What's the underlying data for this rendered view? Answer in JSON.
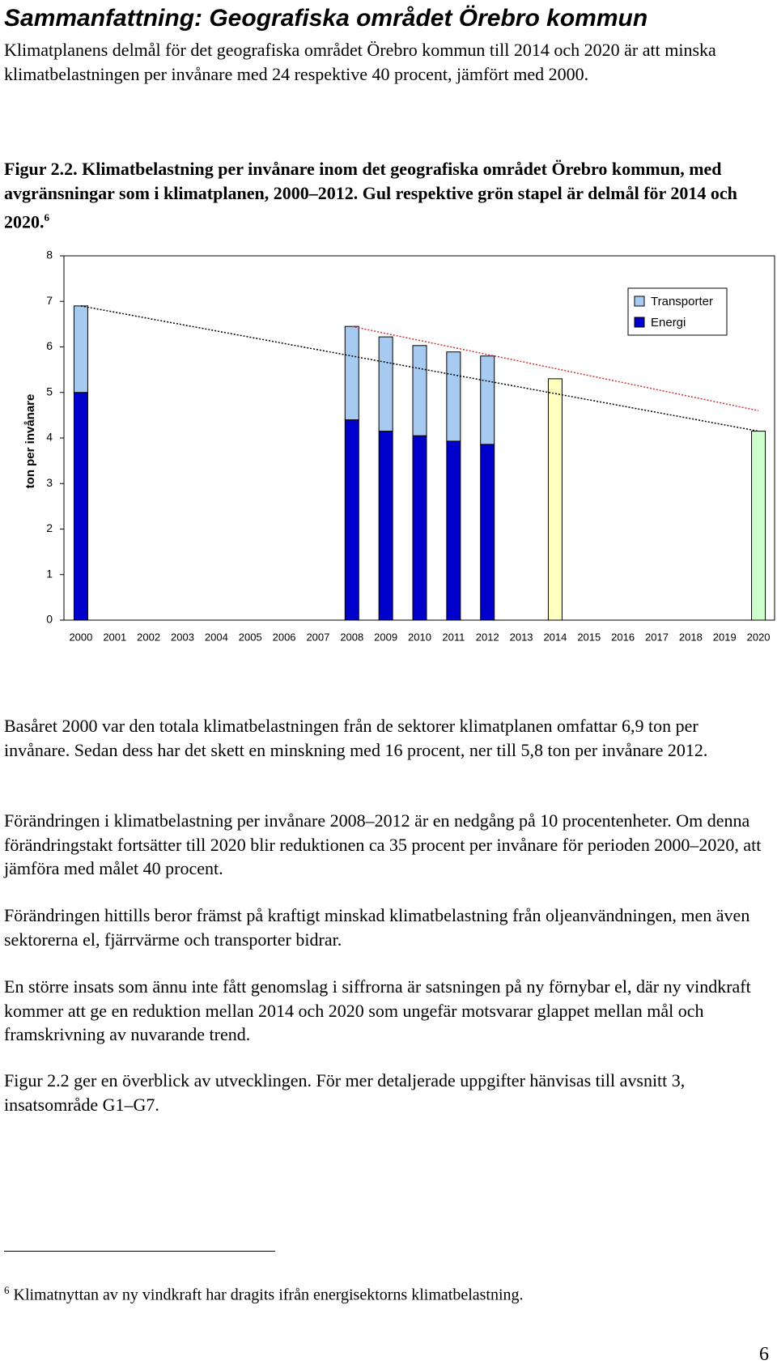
{
  "heading": "Sammanfattning: Geografiska området Örebro kommun",
  "intro": "Klimatplanens delmål för det geografiska området Örebro kommun till 2014 och 2020 är att minska klimatbelastningen per invånare med 24 respektive 40 procent, jämfört med 2000.",
  "figure_caption": {
    "text": "Figur 2.2. Klimatbelastning per invånare inom det geografiska området Örebro kommun, med avgränsningar som i klimatplanen, 2000–2012. Gul respektive grön stapel är delmål för 2014 och 2020.",
    "footnote_ref": "6"
  },
  "chart_data": {
    "type": "bar",
    "stacked": true,
    "ylabel": "ton per invånare",
    "categories": [
      "2000",
      "2001",
      "2002",
      "2003",
      "2004",
      "2005",
      "2006",
      "2007",
      "2008",
      "2009",
      "2010",
      "2011",
      "2012",
      "2013",
      "2014",
      "2015",
      "2016",
      "2017",
      "2018",
      "2019",
      "2020"
    ],
    "series": [
      {
        "name": "Energi",
        "color": "#0000cc",
        "values": [
          5.0,
          null,
          null,
          null,
          null,
          null,
          null,
          null,
          4.4,
          4.15,
          4.05,
          3.93,
          3.86,
          null,
          null,
          null,
          null,
          null,
          null,
          null,
          null
        ]
      },
      {
        "name": "Transporter",
        "color": "#a6caf0",
        "values": [
          1.9,
          null,
          null,
          null,
          null,
          null,
          null,
          null,
          2.05,
          2.07,
          1.98,
          1.96,
          1.94,
          null,
          null,
          null,
          null,
          null,
          null,
          null,
          null
        ]
      },
      {
        "color": "#ffffc0",
        "values": [
          null,
          null,
          null,
          null,
          null,
          null,
          null,
          null,
          null,
          null,
          null,
          null,
          null,
          null,
          5.3,
          null,
          null,
          null,
          null,
          null,
          null
        ]
      },
      {
        "color": "#ccffcc",
        "values": [
          null,
          null,
          null,
          null,
          null,
          null,
          null,
          null,
          null,
          null,
          null,
          null,
          null,
          null,
          null,
          null,
          null,
          null,
          null,
          null,
          4.15
        ]
      }
    ],
    "trendlines": [
      {
        "color": "#000000",
        "x": [
          "2000",
          "2020"
        ],
        "values": [
          6.9,
          4.15
        ]
      },
      {
        "color": "#cc3333",
        "x": [
          "2008",
          "2020"
        ],
        "values": [
          6.45,
          4.6
        ]
      }
    ],
    "ylim": [
      0,
      8
    ],
    "yticks": [
      0,
      1,
      2,
      3,
      4,
      5,
      6,
      7,
      8
    ],
    "grid": false,
    "legend": "top-right"
  },
  "paragraphs": [
    "Basåret 2000 var den totala klimatbelastningen från de sektorer klimatplanen omfattar 6,9 ton per invånare. Sedan dess har det skett en minskning med 16 procent, ner till 5,8 ton per invånare 2012.",
    "Förändringen i klimatbelastning per invånare 2008–2012 är en nedgång på 10 procentenheter. Om denna förändringstakt fortsätter till 2020 blir reduktionen ca 35 procent per invånare för perioden 2000–2020, att jämföra med målet 40 procent.",
    "Förändringen hittills beror främst på kraftigt minskad klimatbelastning från oljeanvändningen, men även sektorerna el, fjärrvärme och transporter bidrar.",
    "En större insats som ännu inte fått genomslag i siffrorna är satsningen på ny förnybar el, där ny vindkraft kommer att ge en reduktion mellan 2014 och 2020 som ungefär motsvarar glappet mellan mål och framskrivning av nuvarande trend.",
    "Figur 2.2 ger en överblick av utvecklingen. För mer detaljerade uppgifter hänvisas till avsnitt 3, insatsområde G1–G7."
  ],
  "footnote": {
    "marker": "6",
    "text": "Klimatnyttan av ny vindkraft har dragits ifrån energisektorns klimatbelastning."
  },
  "page_number": "6"
}
